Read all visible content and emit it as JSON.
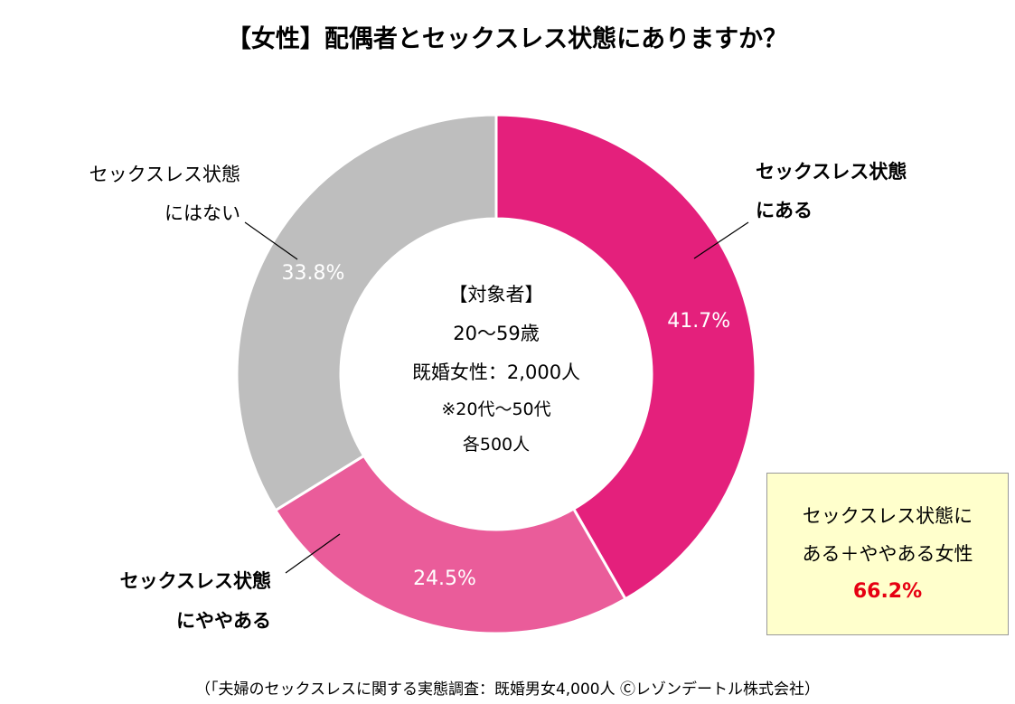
{
  "chart_data": {
    "type": "pie",
    "donut": true,
    "title": "【女性】配偶者とセックスレス状態にありますか？",
    "slices": [
      {
        "name": "セックスレス状態にある",
        "value": 41.7,
        "display": "41.7%",
        "color": "#e4207c"
      },
      {
        "name": "セックスレス状態にややある",
        "value": 24.5,
        "display": "24.5%",
        "color": "#ea5c9a"
      },
      {
        "name": "セックスレス状態にはない",
        "value": 33.8,
        "display": "33.8%",
        "color": "#bebebe"
      }
    ],
    "legend_labels": {
      "aru": [
        "セックスレス状態",
        "にある"
      ],
      "yaya": [
        "セックスレス状態",
        "にややある"
      ],
      "nai": [
        "セックスレス状態",
        "にはない"
      ]
    },
    "center_text": [
      "【対象者】",
      "20～59歳",
      "既婚女性：2,000人",
      "※20代～50代",
      "各500人"
    ]
  },
  "summary": {
    "line1": "セックスレス状態に",
    "line2": "ある＋ややある女性",
    "value": "66.2%"
  },
  "source": "（「夫婦のセックスレスに関する実態調査：既婚男女4,000人 Ⓒレゾンデートル株式会社）"
}
